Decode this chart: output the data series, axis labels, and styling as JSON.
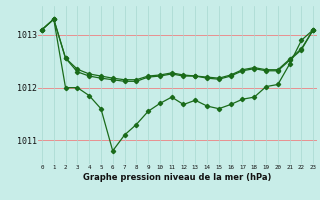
{
  "title": "Graphe pression niveau de la mer (hPa)",
  "bg_color": "#c8ede8",
  "line_color": "#1a6b1a",
  "grid_color_h": "#e89090",
  "grid_color_v": "#a8d8d0",
  "xlim": [
    -0.3,
    23.3
  ],
  "ylim": [
    1010.55,
    1013.55
  ],
  "yticks": [
    1011,
    1012,
    1013
  ],
  "line1_x": [
    0,
    1,
    2,
    3,
    4,
    5,
    6,
    7,
    8,
    9,
    10,
    11,
    12,
    13,
    14,
    15,
    16,
    17,
    18,
    19,
    20,
    21,
    22,
    23
  ],
  "line1_y": [
    1013.1,
    1013.3,
    1012.0,
    1012.0,
    1011.85,
    1011.6,
    1010.8,
    1011.1,
    1011.3,
    1011.55,
    1011.7,
    1011.82,
    1011.68,
    1011.76,
    1011.65,
    1011.6,
    1011.68,
    1011.78,
    1011.82,
    1012.02,
    1012.06,
    1012.45,
    1012.9,
    1013.1
  ],
  "line2_x": [
    0,
    1,
    2,
    3,
    4,
    5,
    6,
    7,
    8,
    9,
    10,
    11,
    12,
    13,
    14,
    15,
    16,
    17,
    18,
    19,
    20,
    21,
    22,
    23
  ],
  "line2_y": [
    1013.1,
    1013.3,
    1012.56,
    1012.3,
    1012.22,
    1012.18,
    1012.15,
    1012.12,
    1012.12,
    1012.2,
    1012.22,
    1012.26,
    1012.22,
    1012.22,
    1012.18,
    1012.16,
    1012.22,
    1012.32,
    1012.36,
    1012.32,
    1012.32,
    1012.52,
    1012.72,
    1013.1
  ],
  "line3_x": [
    0,
    1,
    2,
    3,
    4,
    5,
    6,
    7,
    8,
    9,
    10,
    11,
    12,
    13,
    14,
    15,
    16,
    17,
    18,
    19,
    20,
    21,
    22,
    23
  ],
  "line3_y": [
    1013.1,
    1013.3,
    1012.56,
    1012.35,
    1012.26,
    1012.22,
    1012.18,
    1012.15,
    1012.15,
    1012.22,
    1012.24,
    1012.28,
    1012.24,
    1012.22,
    1012.2,
    1012.18,
    1012.24,
    1012.34,
    1012.38,
    1012.34,
    1012.34,
    1012.54,
    1012.74,
    1013.1
  ]
}
